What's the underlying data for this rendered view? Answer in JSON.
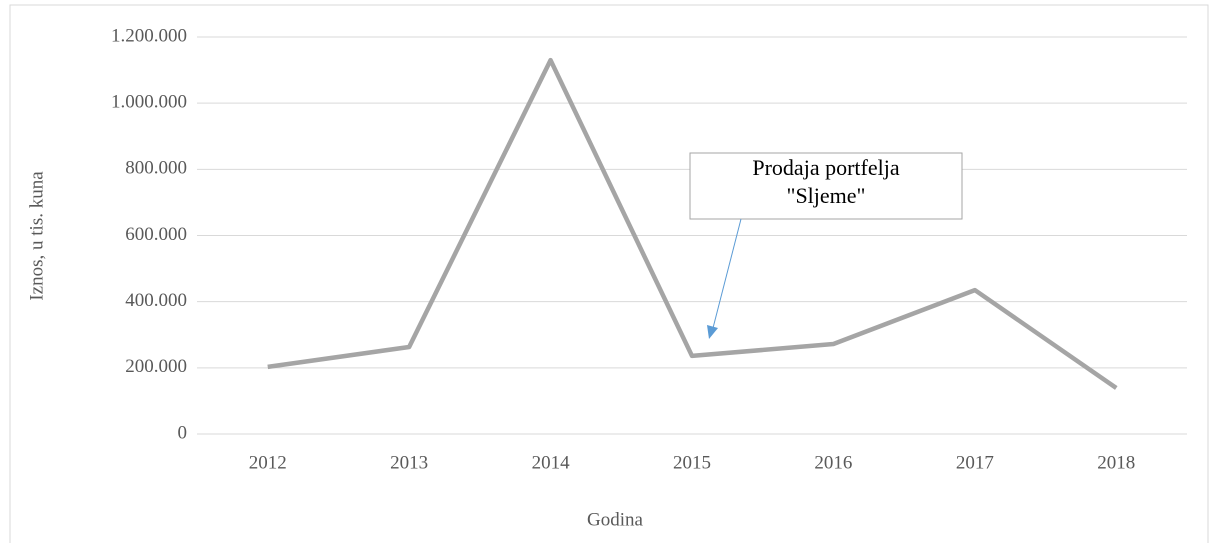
{
  "chart_data": {
    "type": "line",
    "categories": [
      "2012",
      "2013",
      "2014",
      "2015",
      "2016",
      "2017",
      "2018"
    ],
    "series": [
      {
        "name": null,
        "color": "#a5a5a5",
        "values": [
          203000,
          263000,
          1130000,
          236000,
          272000,
          435000,
          139000
        ]
      }
    ],
    "ylim": [
      0,
      1200000
    ],
    "yticks": [
      0,
      {
        "value": 200000,
        "label": "200.000"
      },
      {
        "value": 400000,
        "label": "400.000"
      },
      {
        "value": 600000,
        "label": "600.000"
      },
      {
        "value": 800000,
        "label": "800.000"
      },
      {
        "value": 1000000,
        "label": "1.000.000"
      },
      {
        "value": 1200000,
        "label": "1.200.000"
      }
    ],
    "grid": true,
    "ylabel": "Iznos, u tis. kuna",
    "xlabel": "Godina",
    "annotation": {
      "lines": [
        "Prodaja portfelja",
        "\"Sljeme\""
      ]
    }
  }
}
